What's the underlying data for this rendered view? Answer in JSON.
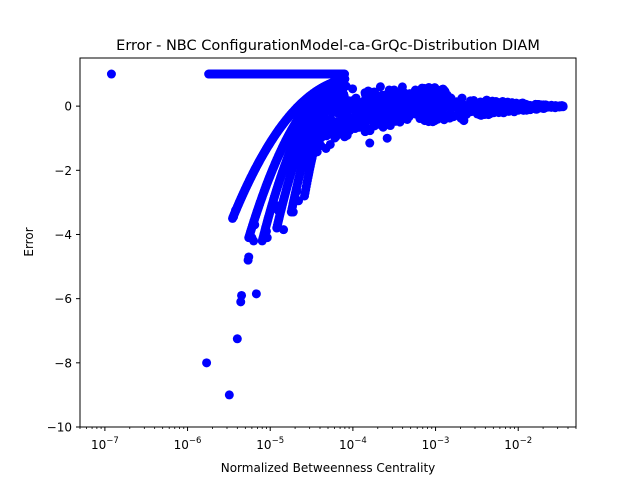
{
  "chart_data": {
    "type": "scatter",
    "title": "Error - NBC ConfigurationModel-ca-GrQc-Distribution DIAM",
    "xlabel": "Normalized Betweenness Centrality",
    "ylabel": "Error",
    "xscale": "log",
    "xlim": [
      5e-08,
      0.05
    ],
    "ylim": [
      -10,
      1.5
    ],
    "x_ticks": [
      {
        "value": 1e-07,
        "base": "10",
        "exp": "−7"
      },
      {
        "value": 1e-06,
        "base": "10",
        "exp": "−6"
      },
      {
        "value": 1e-05,
        "base": "10",
        "exp": "−5"
      },
      {
        "value": 0.0001,
        "base": "10",
        "exp": "−4"
      },
      {
        "value": 0.001,
        "base": "10",
        "exp": "−3"
      },
      {
        "value": 0.01,
        "base": "10",
        "exp": "−2"
      }
    ],
    "y_ticks": [
      {
        "value": 0,
        "label": "0"
      },
      {
        "value": -2,
        "label": "−2"
      },
      {
        "value": -4,
        "label": "−4"
      },
      {
        "value": -6,
        "label": "−6"
      },
      {
        "value": -8,
        "label": "−8"
      },
      {
        "value": -10,
        "label": "−10"
      }
    ],
    "grid": false,
    "marker_color": "#0000ff",
    "series": [
      {
        "points": [
          [
            1.2e-07,
            1.0
          ],
          [
            1.7e-06,
            -8.0
          ],
          [
            3.2e-06,
            -9.0
          ],
          [
            4e-06,
            -7.25
          ],
          [
            4.5e-06,
            -5.9
          ],
          [
            4.4e-06,
            -6.1
          ],
          [
            6.8e-06,
            -5.85
          ],
          [
            5.5e-06,
            -4.7
          ],
          [
            5.4e-06,
            -4.8
          ],
          [
            3.6e-06,
            -3.45
          ],
          [
            3.8e-06,
            -3.25
          ],
          [
            6e-06,
            -4.1
          ],
          [
            6.3e-06,
            -4.2
          ],
          [
            6.5e-06,
            -3.7
          ],
          [
            9e-06,
            -3.9
          ],
          [
            9.2e-06,
            -4.1
          ],
          [
            1.45e-05,
            -3.85
          ],
          [
            1.9e-05,
            -3.3
          ],
          [
            2.1e-05,
            -2.65
          ],
          [
            2.2e-05,
            -2.95
          ],
          [
            1.2e-05,
            -3.1
          ],
          [
            1.25e-05,
            -3.25
          ]
        ]
      }
    ]
  }
}
